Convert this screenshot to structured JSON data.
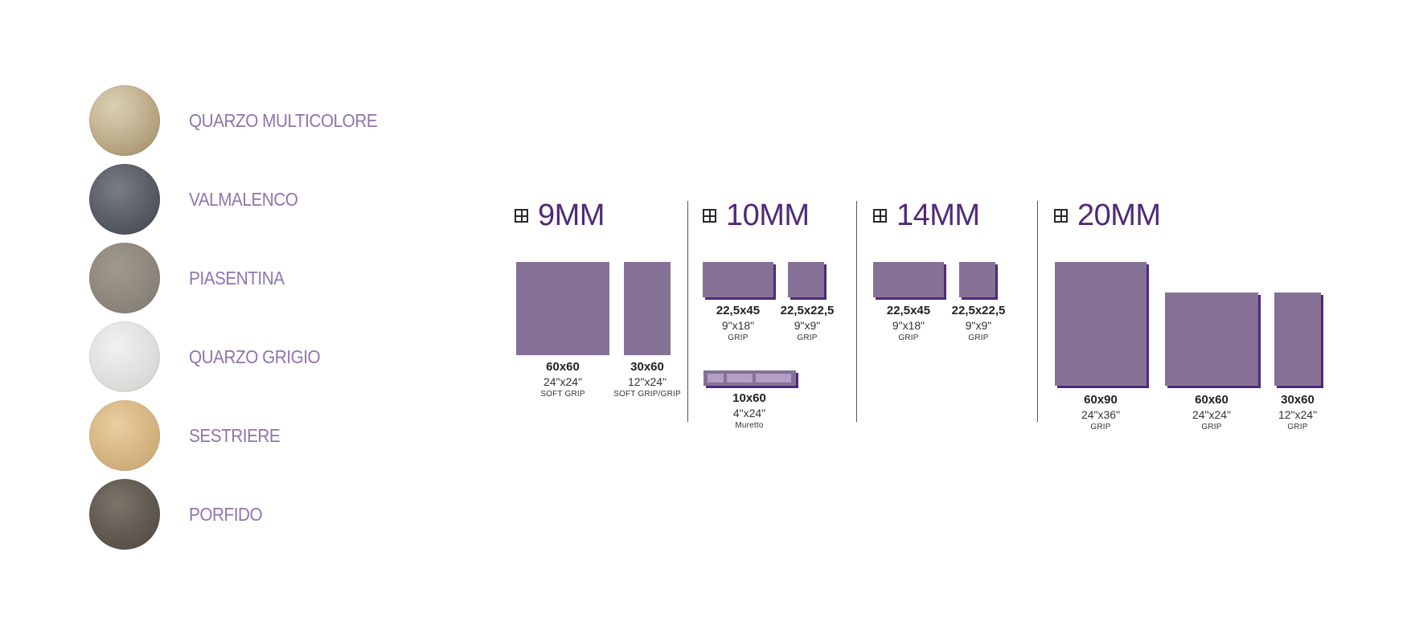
{
  "colors": [
    {
      "name": "QUARZO MULTICOLORE",
      "swatch": "#c9b99a"
    },
    {
      "name": "VALMALENCO",
      "swatch": "#5e626b"
    },
    {
      "name": "PIASENTINA",
      "swatch": "#8f897e"
    },
    {
      "name": "QUARZO GRIGIO",
      "swatch": "#e2e2e0"
    },
    {
      "name": "SESTRIERE",
      "swatch": "#d9b985"
    },
    {
      "name": "PORFIDO",
      "swatch": "#625b52"
    }
  ],
  "accent_color": "#4e2a78",
  "tile_color": "#857196",
  "text_color": "#8f74ad",
  "thickness_icon": "thickness-icon",
  "thickness": [
    {
      "label": "9MM",
      "formats": [
        {
          "metric": "60x60",
          "imperial": "24\"x24\"",
          "finish": "SOFT GRIP"
        },
        {
          "metric": "30x60",
          "imperial": "12\"x24\"",
          "finish": "SOFT GRIP/GRIP"
        }
      ]
    },
    {
      "label": "10MM",
      "formats": [
        {
          "metric": "22,5x45",
          "imperial": "9\"x18\"",
          "finish": "GRIP"
        },
        {
          "metric": "22,5x22,5",
          "imperial": "9\"x9\"",
          "finish": "GRIP"
        },
        {
          "metric": "10x60",
          "imperial": "4\"x24\"",
          "finish": "Muretto"
        }
      ]
    },
    {
      "label": "14MM",
      "formats": [
        {
          "metric": "22,5x45",
          "imperial": "9\"x18\"",
          "finish": "GRIP"
        },
        {
          "metric": "22,5x22,5",
          "imperial": "9\"x9\"",
          "finish": "GRIP"
        }
      ]
    },
    {
      "label": "20MM",
      "formats": [
        {
          "metric": "60x90",
          "imperial": "24\"x36\"",
          "finish": "GRIP"
        },
        {
          "metric": "60x60",
          "imperial": "24\"x24\"",
          "finish": "GRIP"
        },
        {
          "metric": "30x60",
          "imperial": "12\"x24\"",
          "finish": "GRIP"
        }
      ]
    }
  ]
}
